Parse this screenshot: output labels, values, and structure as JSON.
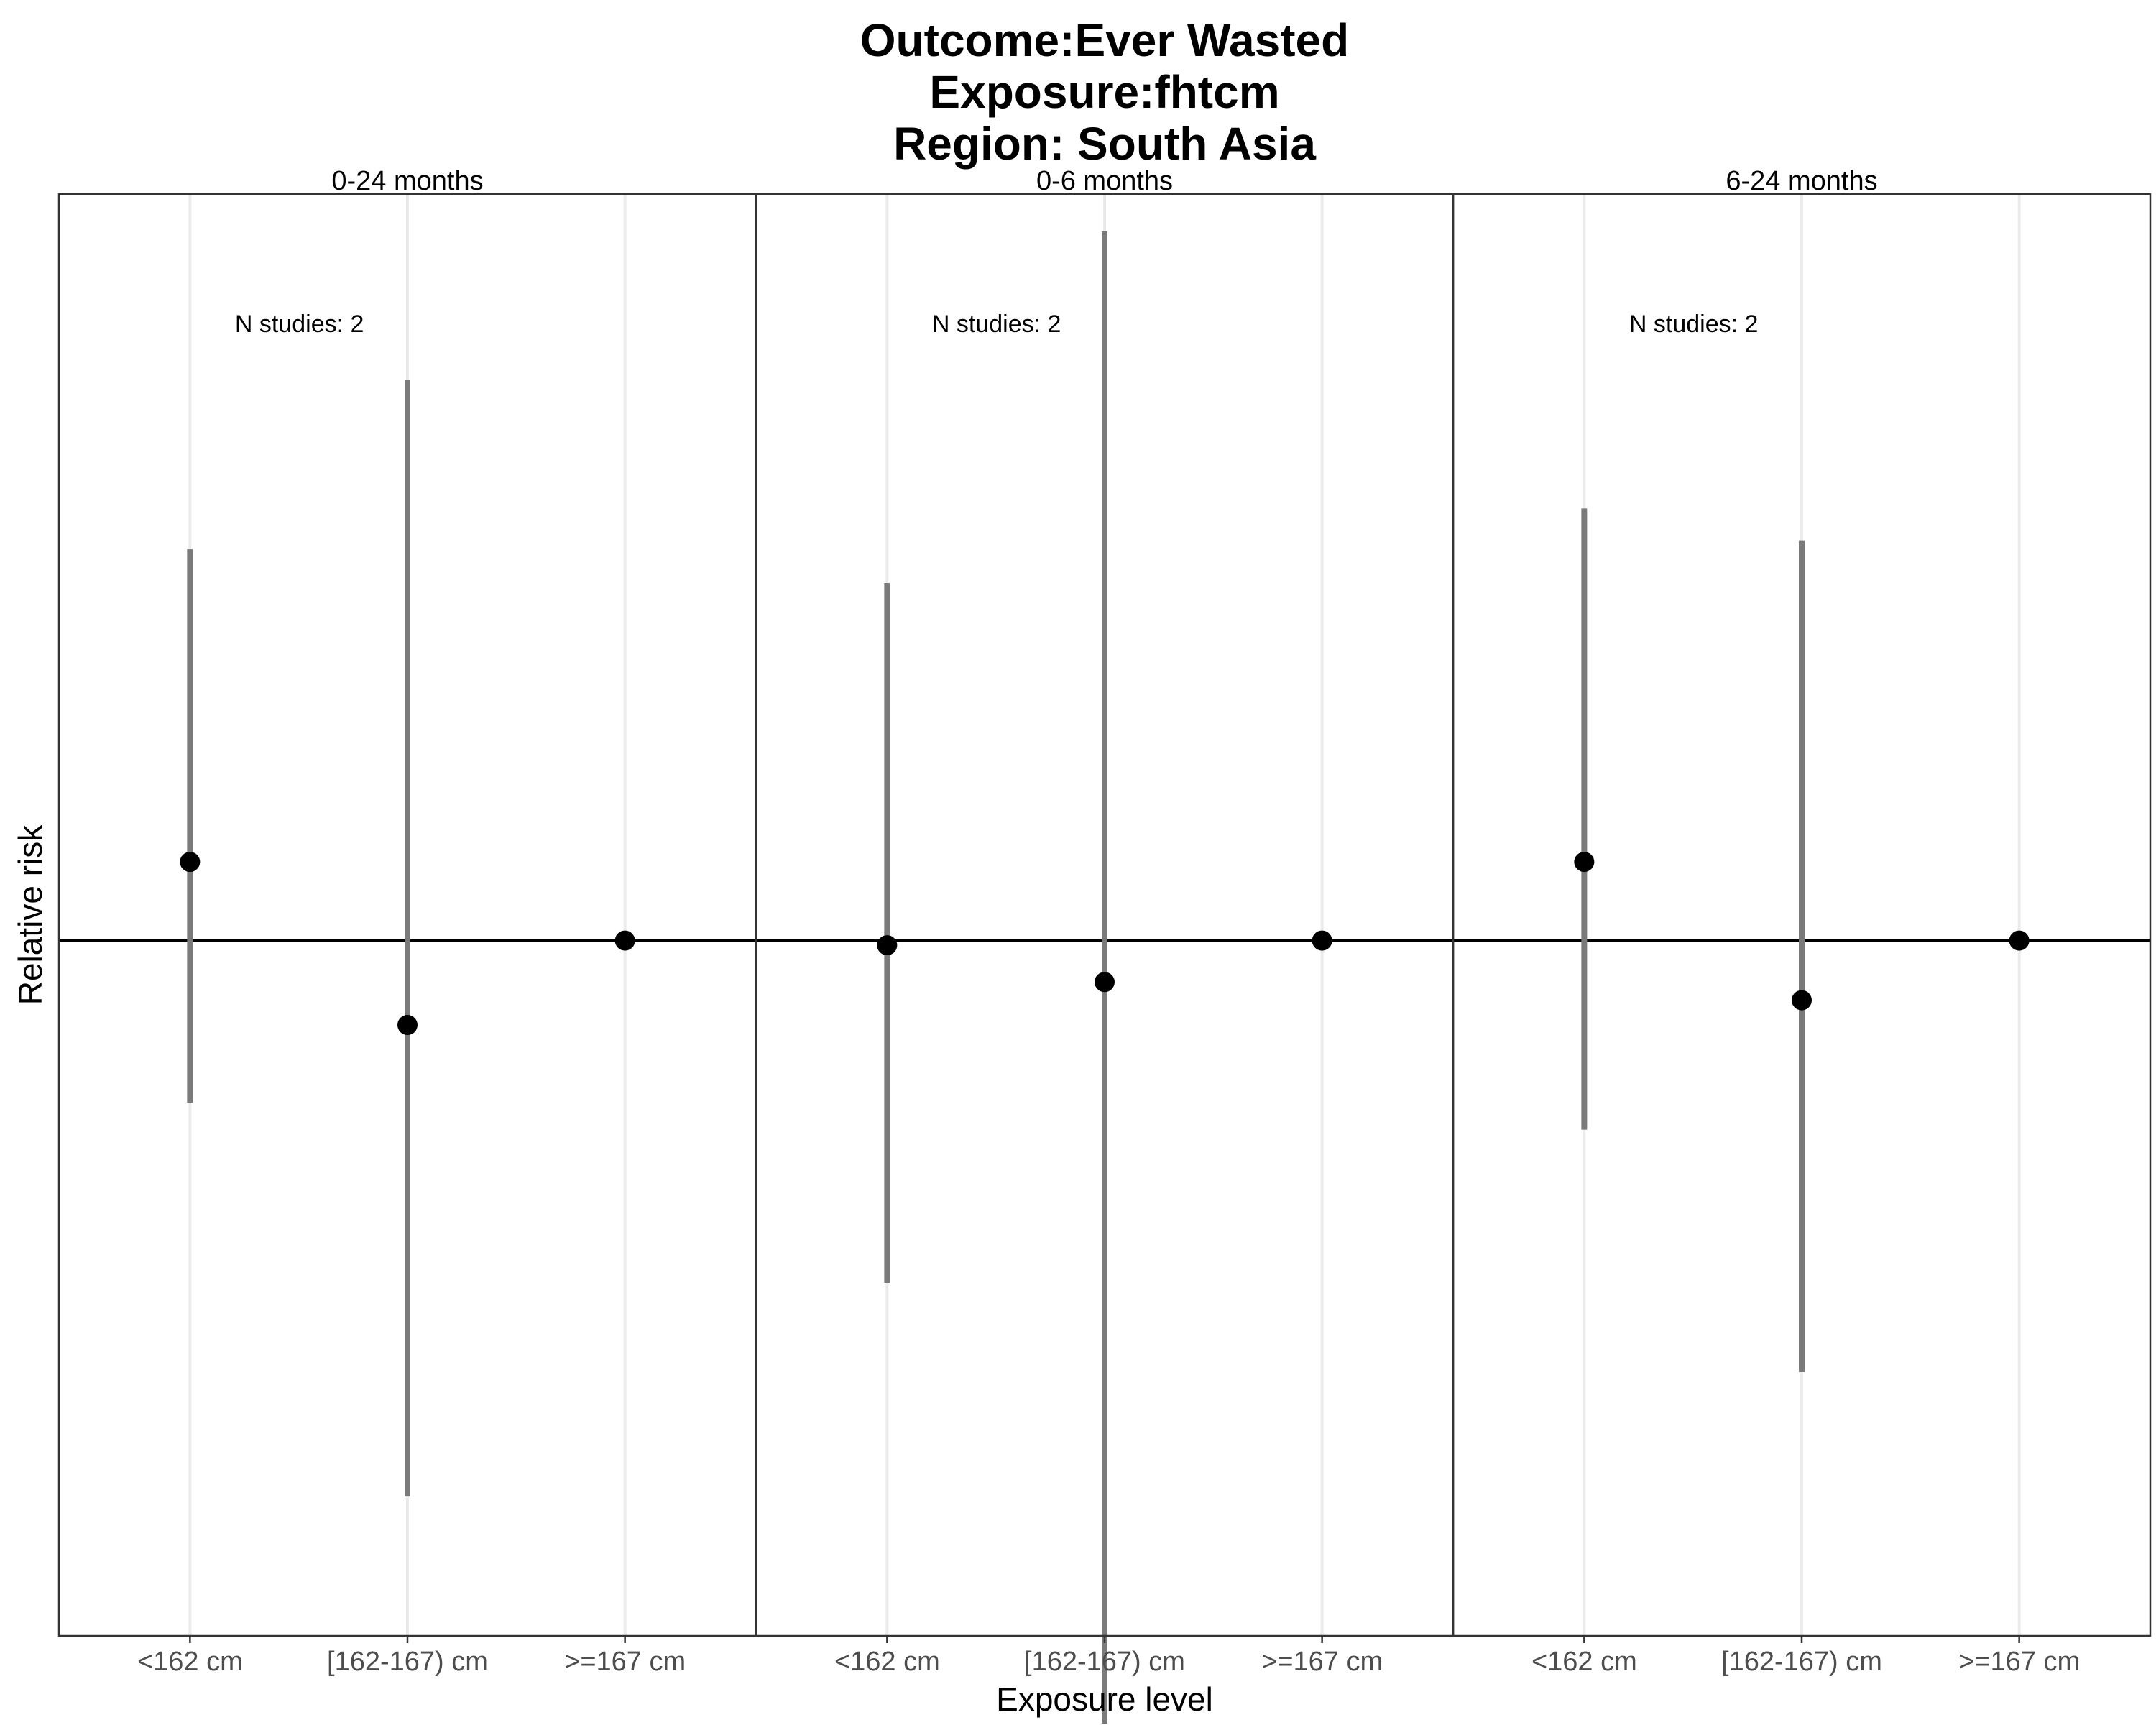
{
  "title_lines": [
    "Outcome:Ever Wasted",
    "Exposure:fhtcm",
    "Region: South Asia"
  ],
  "chart_data": {
    "type": "scatter",
    "subtype": "point-range faceted",
    "xlabel": "Exposure level",
    "ylabel": "Relative risk",
    "categories": [
      "<162 cm",
      "[162-167) cm",
      ">=167 cm"
    ],
    "reference_line": 1,
    "y_scale": "log",
    "ylim": [
      0.55,
      1.9
    ],
    "grid": "vertical major gridlines only",
    "y_tick_labels_shown": false,
    "facets": [
      {
        "strip": "0-24 months",
        "note": "N studies: 2",
        "points": [
          {
            "category": "<162 cm",
            "estimate": 1.07,
            "lower": 0.87,
            "upper": 1.4
          },
          {
            "category": "[162-167) cm",
            "estimate": 0.93,
            "lower": 0.62,
            "upper": 1.62
          },
          {
            "category": ">=167 cm",
            "estimate": 1.0,
            "lower": 1.0,
            "upper": 1.0
          }
        ]
      },
      {
        "strip": "0-6 months",
        "note": "N studies: 2",
        "points": [
          {
            "category": "<162 cm",
            "estimate": 0.996,
            "lower": 0.745,
            "upper": 1.36
          },
          {
            "category": "[162-167) cm",
            "estimate": 0.965,
            "lower": 0.51,
            "upper": 1.84
          },
          {
            "category": ">=167 cm",
            "estimate": 1.0,
            "lower": 1.0,
            "upper": 1.0
          }
        ]
      },
      {
        "strip": "6-24 months",
        "note": "N studies: 2",
        "points": [
          {
            "category": "<162 cm",
            "estimate": 1.07,
            "lower": 0.85,
            "upper": 1.45
          },
          {
            "category": "[162-167) cm",
            "estimate": 0.95,
            "lower": 0.69,
            "upper": 1.41
          },
          {
            "category": ">=167 cm",
            "estimate": 1.0,
            "lower": 1.0,
            "upper": 1.0
          }
        ]
      }
    ]
  }
}
